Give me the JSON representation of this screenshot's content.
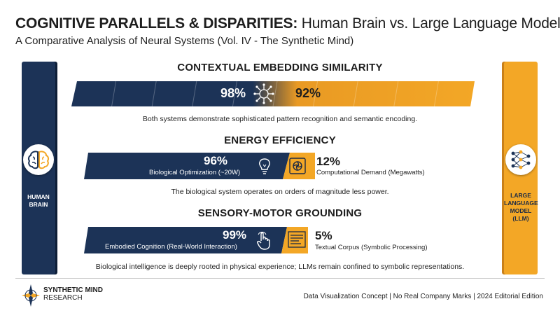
{
  "header": {
    "title_strong": "COGNITIVE PARALLELS & DISPARITIES:",
    "title_rest": " Human Brain vs. Large Language Model",
    "subtitle": "A Comparative Analysis of Neural Systems (Vol. IV - The Synthetic Mind)"
  },
  "left_panel": {
    "label": "HUMAN\nBRAIN",
    "icon": "brain-icon",
    "color": "#1c3357"
  },
  "right_panel": {
    "label": "LARGE\nLANGUAGE\nMODEL\n(LLM)",
    "icon": "neural-network-icon",
    "color": "#f3a726"
  },
  "chart_data": [
    {
      "type": "bar",
      "title": "CONTEXTUAL EMBEDDING SIMILARITY",
      "series": [
        {
          "name": "",
          "values": [
            98
          ],
          "value_label": "98%",
          "color": "#1c3357"
        },
        {
          "name": "",
          "values": [
            92
          ],
          "value_label": "92%",
          "color": "#f3a726"
        }
      ],
      "caption": "Both systems demonstrate sophisticated pattern recognition and semantic encoding."
    },
    {
      "type": "bar",
      "title": "ENERGY EFFICIENCY",
      "series": [
        {
          "name": "Biological Optimization (~20W)",
          "values": [
            96
          ],
          "value_label": "96%",
          "color": "#1c3357"
        },
        {
          "name": "Computational Demand (Megawatts)",
          "values": [
            12
          ],
          "value_label": "12%",
          "color": "#f3a726"
        }
      ],
      "caption": "The biological system operates on orders of magnitude less power."
    },
    {
      "type": "bar",
      "title": "SENSORY-MOTOR GROUNDING",
      "series": [
        {
          "name": "Embodied Cognition (Real-World Interaction)",
          "values": [
            99
          ],
          "value_label": "99%",
          "color": "#1c3357"
        },
        {
          "name": "Textual Corpus (Symbolic Processing)",
          "values": [
            5
          ],
          "value_label": "5%",
          "color": "#f3a726"
        }
      ],
      "caption": "Biological intelligence is deeply rooted in physical experience; LLMs remain confined to symbolic representations."
    }
  ],
  "footer": {
    "brand_name": "SYNTHETIC MIND",
    "brand_sub": "RESEARCH",
    "note": "Data Visualization Concept | No Real Company Marks | 2024 Editorial Edition"
  }
}
